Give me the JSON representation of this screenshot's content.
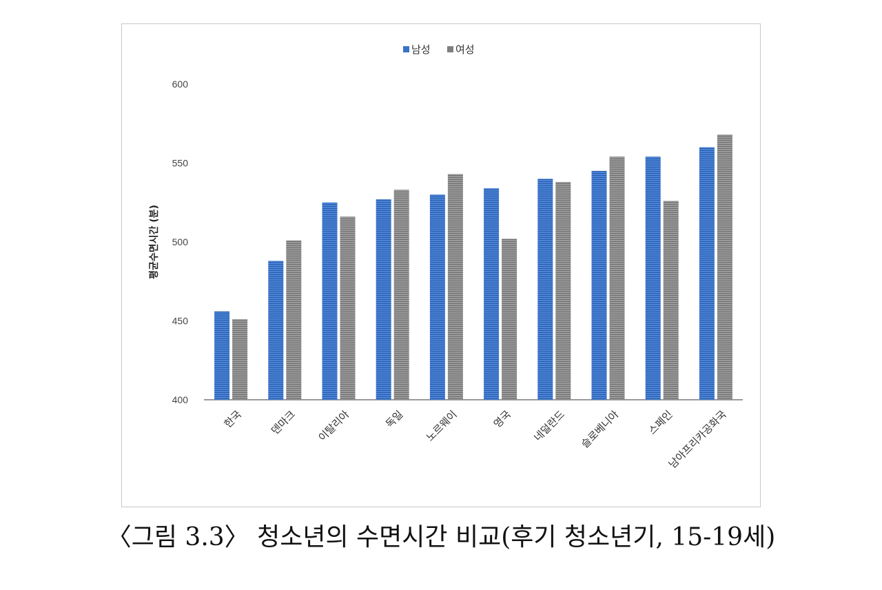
{
  "chart_data": {
    "type": "bar",
    "title": "",
    "xlabel": "",
    "ylabel": "평균수면시간 (분)",
    "categories": [
      "한국",
      "덴마크",
      "이탈리아",
      "독일",
      "노르웨이",
      "영국",
      "네덜란드",
      "슬로베니아",
      "스페인",
      "남아프리카공화국"
    ],
    "series": [
      {
        "name": "남성",
        "color": "#3a72c8",
        "values": [
          456,
          488,
          525,
          527,
          530,
          534,
          540,
          545,
          554,
          560
        ]
      },
      {
        "name": "여성",
        "color": "#8c8c8c",
        "values": [
          451,
          501,
          516,
          533,
          543,
          502,
          538,
          554,
          526,
          568
        ]
      }
    ],
    "ylim": [
      400,
      600
    ],
    "yticks": [
      400,
      450,
      500,
      550,
      600
    ],
    "grid": false,
    "legend": "top-center"
  },
  "caption": "〈그림 3.3〉 청소년의 수면시간 비교(후기 청소년기, 15-19세)"
}
